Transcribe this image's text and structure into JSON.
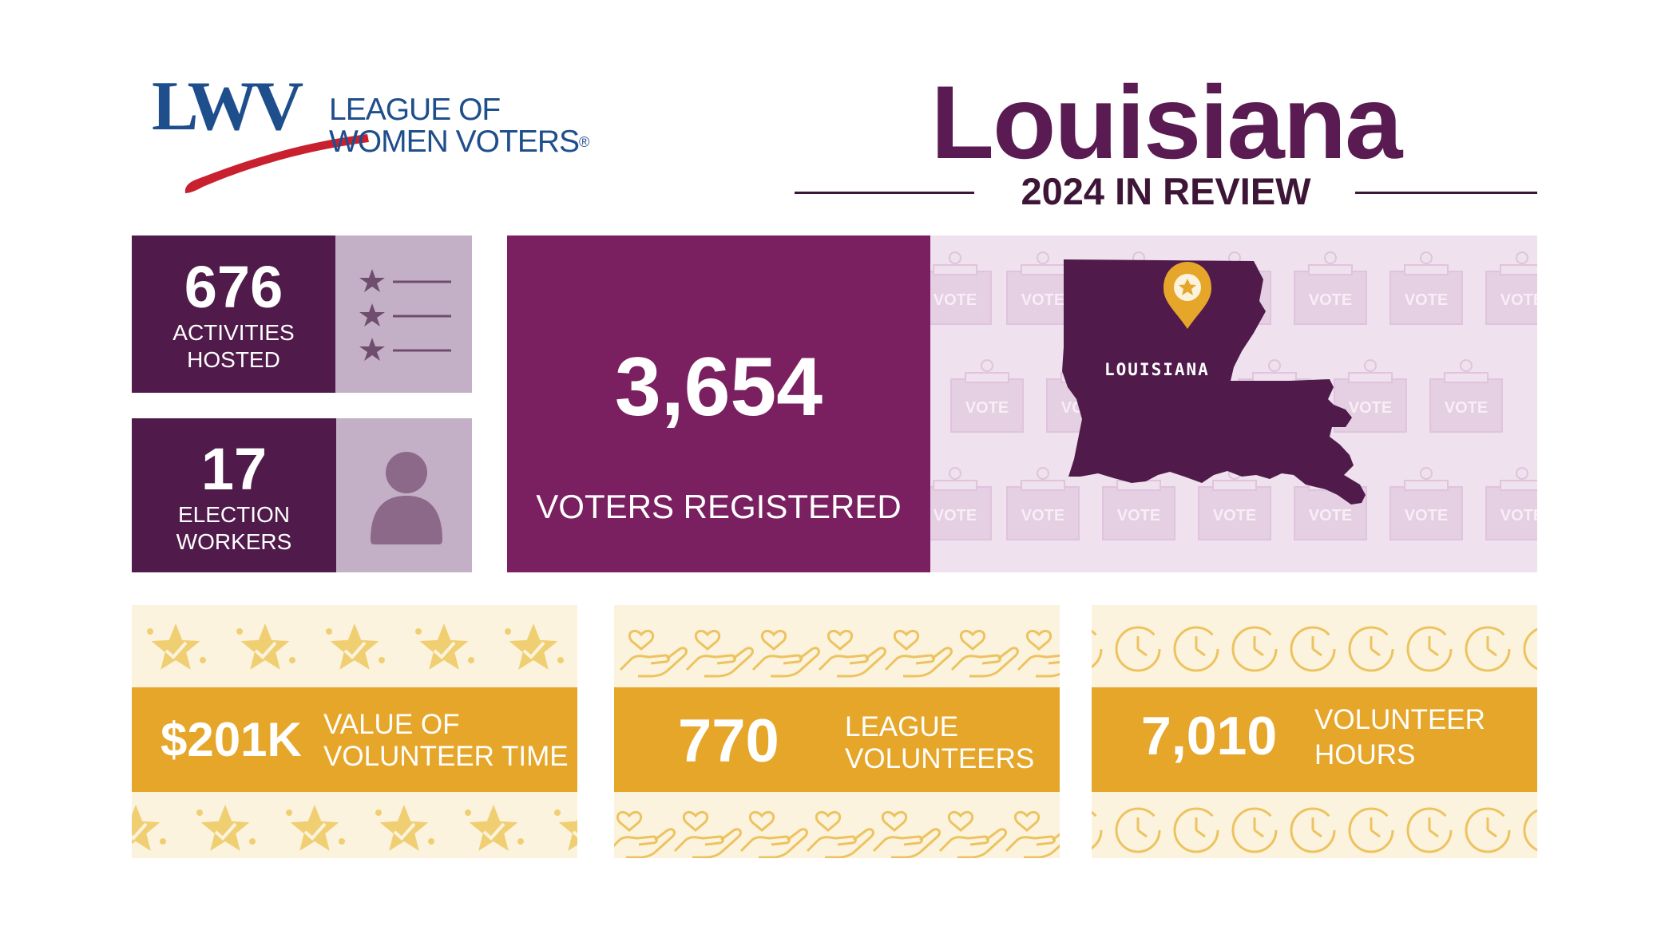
{
  "logo": {
    "mark": "LWV",
    "line1": "LEAGUE OF",
    "line2": "WOMEN VOTERS",
    "reg": "®"
  },
  "header": {
    "title": "Louisiana",
    "subtitle": "2024 IN REVIEW"
  },
  "stats": {
    "activities": {
      "value": "676",
      "label_line1": "ACTIVITIES",
      "label_line2": "HOSTED",
      "icon": "star-list-icon"
    },
    "election_workers": {
      "value": "17",
      "label_line1": "ELECTION",
      "label_line2": "WORKERS",
      "icon": "person-icon"
    },
    "voters": {
      "value": "3,654",
      "label": "VOTERS REGISTERED"
    }
  },
  "map": {
    "state_label": "LOUISIANA",
    "pattern_text": "VOTE",
    "icon": "map-pin-star-icon"
  },
  "bottom": {
    "value_time": {
      "value": "$201K",
      "label_line1": "VALUE OF",
      "label_line2": "VOLUNTEER TIME",
      "icon": "star-check-icon"
    },
    "volunteers": {
      "value": "770",
      "label_line1": "LEAGUE",
      "label_line2": "VOLUNTEERS",
      "icon": "hand-heart-icon"
    },
    "hours": {
      "value": "7,010",
      "label_line1": "VOLUNTEER",
      "label_line2": "HOURS",
      "icon": "clock-icon"
    }
  },
  "colors": {
    "purple_dark": "#501b4b",
    "purple_main": "#7a1f60",
    "purple_light": "#c4b0c6",
    "gold": "#e6a62a",
    "cream": "#fbf3de",
    "logo_blue": "#1f4e8c",
    "logo_red": "#c8202f"
  }
}
